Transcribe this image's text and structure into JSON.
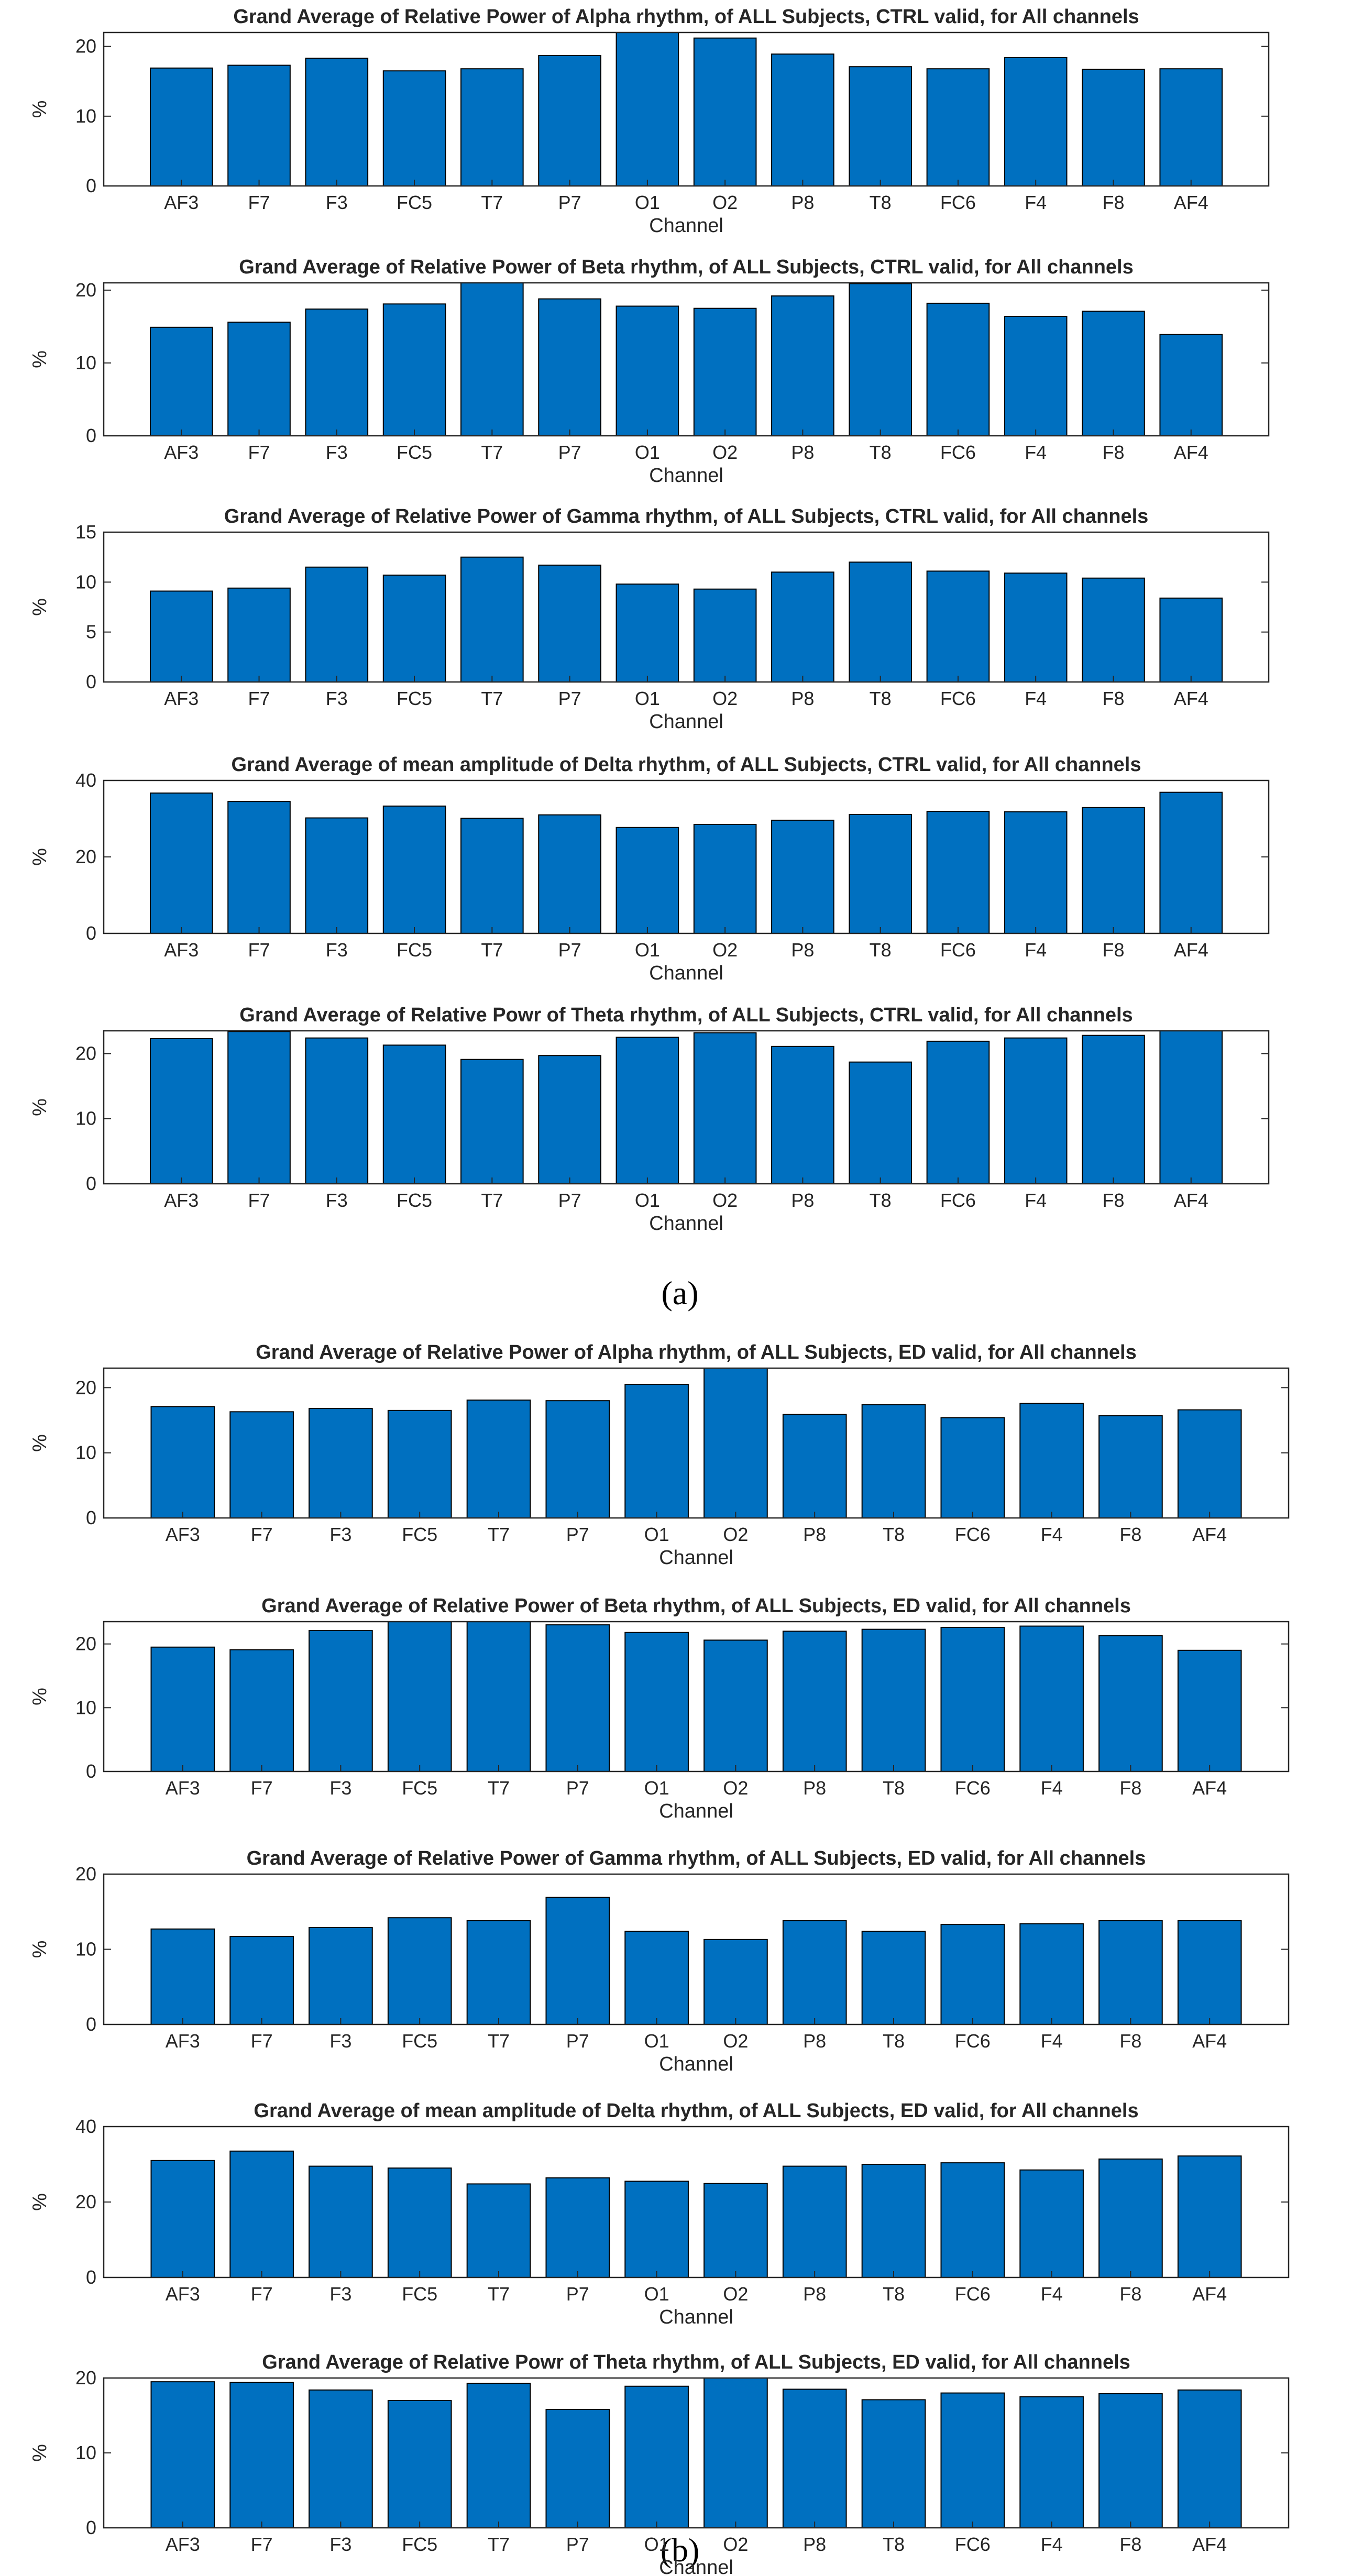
{
  "chart_data": [
    {
      "type": "bar",
      "panel": "a",
      "title": "Grand Average of Relative Power of Alpha rhythm, of ALL Subjects, CTRL valid, for All channels",
      "xlabel": "Channel",
      "ylabel": "%",
      "ylim": [
        0,
        22
      ],
      "yticks": [
        0,
        10,
        20
      ],
      "categories": [
        "AF3",
        "F7",
        "F3",
        "FC5",
        "T7",
        "P7",
        "O1",
        "O2",
        "P8",
        "T8",
        "FC6",
        "F4",
        "F8",
        "AF4"
      ],
      "values": [
        16.9,
        17.3,
        18.3,
        16.5,
        16.8,
        18.7,
        22.0,
        21.2,
        18.9,
        17.1,
        16.8,
        18.4,
        16.7,
        16.8
      ]
    },
    {
      "type": "bar",
      "panel": "a",
      "title": "Grand Average of Relative Power of Beta rhythm, of ALL Subjects, CTRL valid, for All channels",
      "xlabel": "Channel",
      "ylabel": "%",
      "ylim": [
        0,
        21
      ],
      "yticks": [
        0,
        10,
        20
      ],
      "categories": [
        "AF3",
        "F7",
        "F3",
        "FC5",
        "T7",
        "P7",
        "O1",
        "O2",
        "P8",
        "T8",
        "FC6",
        "F4",
        "F8",
        "AF4"
      ],
      "values": [
        14.9,
        15.6,
        17.4,
        18.1,
        21.0,
        18.8,
        17.8,
        17.5,
        19.2,
        20.9,
        18.2,
        16.4,
        17.1,
        13.9
      ]
    },
    {
      "type": "bar",
      "panel": "a",
      "title": "Grand Average of Relative Power of Gamma rhythm, of ALL Subjects, CTRL valid, for All channels",
      "xlabel": "Channel",
      "ylabel": "%",
      "ylim": [
        0,
        15
      ],
      "yticks": [
        0,
        5,
        10,
        15
      ],
      "categories": [
        "AF3",
        "F7",
        "F3",
        "FC5",
        "T7",
        "P7",
        "O1",
        "O2",
        "P8",
        "T8",
        "FC6",
        "F4",
        "F8",
        "AF4"
      ],
      "values": [
        9.1,
        9.4,
        11.5,
        10.7,
        12.5,
        11.7,
        9.8,
        9.3,
        11.0,
        12.0,
        11.1,
        10.9,
        10.4,
        8.4
      ]
    },
    {
      "type": "bar",
      "panel": "a",
      "title": "Grand Average of mean amplitude of Delta rhythm, of ALL Subjects, CTRL valid, for All channels",
      "xlabel": "Channel",
      "ylabel": "%",
      "ylim": [
        0,
        40
      ],
      "yticks": [
        0,
        20,
        40
      ],
      "categories": [
        "AF3",
        "F7",
        "F3",
        "FC5",
        "T7",
        "P7",
        "O1",
        "O2",
        "P8",
        "T8",
        "FC6",
        "F4",
        "F8",
        "AF4"
      ],
      "values": [
        36.7,
        34.5,
        30.2,
        33.3,
        30.1,
        31.0,
        27.7,
        28.5,
        29.6,
        31.1,
        31.9,
        31.8,
        32.9,
        36.9
      ]
    },
    {
      "type": "bar",
      "panel": "a",
      "title": "Grand Average of Relative Powr of Theta rhythm, of ALL Subjects, CTRL valid, for All channels",
      "xlabel": "Channel",
      "ylabel": "%",
      "ylim": [
        0,
        23.5
      ],
      "yticks": [
        0,
        10,
        20
      ],
      "categories": [
        "AF3",
        "F7",
        "F3",
        "FC5",
        "T7",
        "P7",
        "O1",
        "O2",
        "P8",
        "T8",
        "FC6",
        "F4",
        "F8",
        "AF4"
      ],
      "values": [
        22.3,
        23.4,
        22.4,
        21.3,
        19.1,
        19.7,
        22.5,
        23.2,
        21.1,
        18.7,
        21.9,
        22.4,
        22.8,
        23.5
      ]
    },
    {
      "type": "bar",
      "panel": "b",
      "title": "Grand Average of Relative Power of Alpha rhythm, of ALL Subjects, ED valid, for All channels",
      "xlabel": "Channel",
      "ylabel": "%",
      "ylim": [
        0,
        23
      ],
      "yticks": [
        0,
        10,
        20
      ],
      "categories": [
        "AF3",
        "F7",
        "F3",
        "FC5",
        "T7",
        "P7",
        "O1",
        "O2",
        "P8",
        "T8",
        "FC6",
        "F4",
        "F8",
        "AF4"
      ],
      "values": [
        17.1,
        16.3,
        16.8,
        16.5,
        18.1,
        18.0,
        20.5,
        23.0,
        15.9,
        17.4,
        15.4,
        17.6,
        15.7,
        16.6
      ]
    },
    {
      "type": "bar",
      "panel": "b",
      "title": "Grand Average of Relative Power of Beta rhythm, of ALL Subjects, ED valid, for All channels",
      "xlabel": "Channel",
      "ylabel": "%",
      "ylim": [
        0,
        23.5
      ],
      "yticks": [
        0,
        10,
        20
      ],
      "categories": [
        "AF3",
        "F7",
        "F3",
        "FC5",
        "T7",
        "P7",
        "O1",
        "O2",
        "P8",
        "T8",
        "FC6",
        "F4",
        "F8",
        "AF4"
      ],
      "values": [
        19.5,
        19.1,
        22.1,
        23.5,
        23.5,
        23.0,
        21.8,
        20.6,
        22.0,
        22.3,
        22.6,
        22.8,
        21.3,
        19.0
      ]
    },
    {
      "type": "bar",
      "panel": "b",
      "title": "Grand Average of Relative Power of Gamma rhythm, of ALL Subjects, ED valid, for All channels",
      "xlabel": "Channel",
      "ylabel": "%",
      "ylim": [
        0,
        20
      ],
      "yticks": [
        0,
        10,
        20
      ],
      "categories": [
        "AF3",
        "F7",
        "F3",
        "FC5",
        "T7",
        "P7",
        "O1",
        "O2",
        "P8",
        "T8",
        "FC6",
        "F4",
        "F8",
        "AF4"
      ],
      "values": [
        12.7,
        11.7,
        12.9,
        14.2,
        13.8,
        16.9,
        12.4,
        11.3,
        13.8,
        12.4,
        13.3,
        13.4,
        13.8,
        13.8
      ]
    },
    {
      "type": "bar",
      "panel": "b",
      "title": "Grand Average of mean amplitude of Delta rhythm, of ALL Subjects, ED valid, for All channels",
      "xlabel": "Channel",
      "ylabel": "%",
      "ylim": [
        0,
        40
      ],
      "yticks": [
        0,
        20,
        40
      ],
      "categories": [
        "AF3",
        "F7",
        "F3",
        "FC5",
        "T7",
        "P7",
        "O1",
        "O2",
        "P8",
        "T8",
        "FC6",
        "F4",
        "F8",
        "AF4"
      ],
      "values": [
        31.0,
        33.5,
        29.5,
        29.0,
        24.8,
        26.4,
        25.5,
        24.9,
        29.5,
        30.0,
        30.4,
        28.5,
        31.4,
        32.2
      ]
    },
    {
      "type": "bar",
      "panel": "b",
      "title": "Grand Average of Relative Powr of Theta rhythm, of ALL Subjects, ED valid, for All channels",
      "xlabel": "Channel",
      "ylabel": "%",
      "ylim": [
        0,
        20
      ],
      "yticks": [
        0,
        10,
        20
      ],
      "categories": [
        "AF3",
        "F7",
        "F3",
        "FC5",
        "T7",
        "P7",
        "O1",
        "O2",
        "P8",
        "T8",
        "FC6",
        "F4",
        "F8",
        "AF4"
      ],
      "values": [
        19.5,
        19.4,
        18.4,
        17.0,
        19.3,
        15.8,
        18.9,
        20.0,
        18.5,
        17.1,
        18.0,
        17.5,
        17.9,
        18.4
      ]
    }
  ],
  "captions": {
    "a": "(a)",
    "b": "(b)"
  },
  "colors": {
    "bar": "#0070c0",
    "bar_edge": "#000000",
    "axis": "#262626"
  }
}
